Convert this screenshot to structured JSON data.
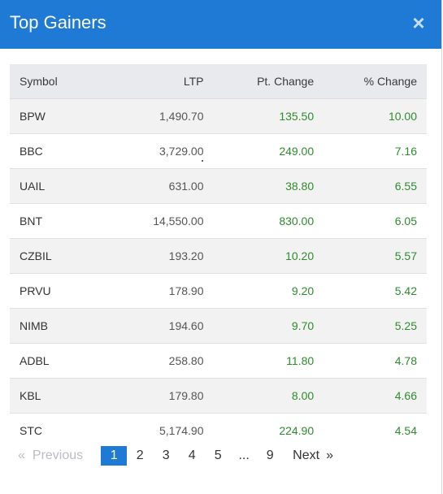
{
  "modal": {
    "title": "Top Gainers",
    "close_glyph": "×"
  },
  "table": {
    "headers": [
      "Symbol",
      "LTP",
      "Pt. Change",
      "% Change"
    ],
    "rows": [
      [
        "BPW",
        "1,490.70",
        "135.50",
        "10.00"
      ],
      [
        "BBC",
        "3,729.00",
        "249.00",
        "7.16"
      ],
      [
        "UAIL",
        "631.00",
        "38.80",
        "6.55"
      ],
      [
        "BNT",
        "14,550.00",
        "830.00",
        "6.05"
      ],
      [
        "CZBIL",
        "193.20",
        "10.20",
        "5.57"
      ],
      [
        "PRVU",
        "178.90",
        "9.20",
        "5.42"
      ],
      [
        "NIMB",
        "194.60",
        "9.70",
        "5.25"
      ],
      [
        "ADBL",
        "258.80",
        "11.80",
        "4.78"
      ],
      [
        "KBL",
        "179.80",
        "8.00",
        "4.66"
      ],
      [
        "STC",
        "5,174.90",
        "224.90",
        "4.54"
      ]
    ]
  },
  "pagination": {
    "prev_arrow": "«",
    "prev_label": "Previous",
    "pages": [
      "1",
      "2",
      "3",
      "4",
      "5"
    ],
    "ellipsis": "...",
    "last_page": "9",
    "next_label": "Next",
    "next_arrow": "»",
    "current_page": "1"
  },
  "colors": {
    "header_bg": "#1f7ad6",
    "positive": "#2e8b2e",
    "active_page": "#1f7ad6"
  }
}
